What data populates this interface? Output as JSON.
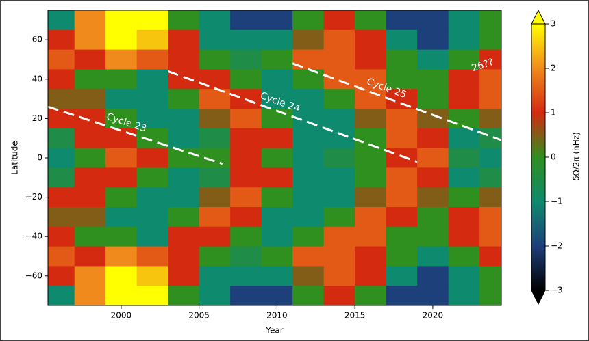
{
  "chart_data": {
    "type": "heatmap",
    "xlabel": "Year",
    "ylabel": "Latitude",
    "x": [
      1996,
      1998,
      2000,
      2002,
      2004,
      2006,
      2008,
      2010,
      2012,
      2014,
      2016,
      2018,
      2020,
      2022,
      2024
    ],
    "y": [
      70,
      60,
      50,
      40,
      30,
      20,
      10,
      0,
      -10,
      -20,
      -30,
      -40,
      -50,
      -60,
      -70
    ],
    "z": [
      [
        -1,
        2,
        3,
        3,
        0,
        -1,
        -2,
        -2,
        0,
        1,
        0,
        -2,
        -2,
        -1,
        0
      ],
      [
        1,
        2,
        3,
        2.5,
        1,
        -1,
        -1,
        -1,
        0.5,
        1.5,
        1,
        -1,
        -2,
        -1,
        0
      ],
      [
        1.5,
        1,
        2,
        1.5,
        1,
        0,
        -0.5,
        0,
        1.5,
        1.5,
        1,
        0,
        -1,
        0,
        1
      ],
      [
        1,
        0,
        0,
        -1,
        1,
        1,
        0,
        -1,
        0,
        1.5,
        1.5,
        0,
        0,
        1,
        1.5
      ],
      [
        0.5,
        0.5,
        -1,
        -1,
        0,
        1.5,
        1,
        -1,
        -1,
        0,
        1.5,
        1,
        0,
        1,
        1.5
      ],
      [
        1,
        1,
        0,
        -1,
        -1,
        0.5,
        1.5,
        0,
        -1,
        -1,
        0.5,
        1.5,
        0.5,
        0,
        0.5
      ],
      [
        -0.5,
        1,
        1,
        0,
        -1,
        -0.5,
        1,
        1,
        -1,
        -1,
        0,
        1.5,
        1,
        -1,
        -0.5
      ],
      [
        -1,
        0,
        1.5,
        1,
        0,
        0,
        1,
        0,
        -1,
        -0.5,
        0,
        1,
        1.5,
        -0.5,
        -1
      ],
      [
        -0.5,
        1,
        1,
        0,
        -1,
        -0.5,
        1,
        1,
        -1,
        -1,
        0,
        1.5,
        1,
        -1,
        -0.5
      ],
      [
        1,
        1,
        0,
        -1,
        -1,
        0.5,
        1.5,
        0,
        -1,
        -1,
        0.5,
        1.5,
        0.5,
        0,
        0.5
      ],
      [
        0.5,
        0.5,
        -1,
        -1,
        0,
        1.5,
        1,
        -1,
        -1,
        0,
        1.5,
        1,
        0,
        1,
        1.5
      ],
      [
        1,
        0,
        0,
        -1,
        1,
        1,
        0,
        -1,
        0,
        1.5,
        1.5,
        0,
        0,
        1,
        1.5
      ],
      [
        1.5,
        1,
        2,
        1.5,
        1,
        0,
        -0.5,
        0,
        1.5,
        1.5,
        1,
        0,
        -1,
        0,
        1
      ],
      [
        1,
        2,
        3,
        2.5,
        1,
        -1,
        -1,
        -1,
        0.5,
        1.5,
        1,
        -1,
        -2,
        -1,
        0
      ],
      [
        -1,
        2,
        3,
        3,
        0,
        -1,
        -2,
        -2,
        0,
        1,
        0,
        -2,
        -2,
        -1,
        0
      ]
    ],
    "xlim": [
      1995.3,
      2024.4
    ],
    "ylim": [
      -75,
      75
    ],
    "xticks": [
      2000,
      2005,
      2010,
      2015,
      2020
    ],
    "yticks": [
      {
        "value": -60,
        "label": "−60"
      },
      {
        "value": -40,
        "label": "−40"
      },
      {
        "value": -20,
        "label": "−20"
      },
      0,
      20,
      40,
      60
    ],
    "colorscale": [
      "#000000",
      "#1d3f7a",
      "#0e8a6e",
      "#2f8f1f",
      "#d42a10",
      "#f08a1c",
      "#ffff00"
    ],
    "clim": [
      -3,
      3
    ],
    "colorbar_label": "δΩ/2π (nHz)",
    "colorbar_ticks": [
      {
        "value": -3,
        "label": "−3"
      },
      {
        "value": -2,
        "label": "−2"
      },
      {
        "value": -1,
        "label": "−1"
      },
      0,
      1,
      2,
      3
    ],
    "annotations": [
      {
        "text": "Cycle 23",
        "x": [
          1995.3,
          2006.5
        ],
        "y": [
          26,
          -3
        ]
      },
      {
        "text": "Cycle 24",
        "x": [
          2003,
          2019
        ],
        "y": [
          44,
          -2
        ]
      },
      {
        "text": "Cycle 25",
        "x": [
          2011,
          2024.4
        ],
        "y": [
          48,
          9
        ]
      },
      {
        "text": "26??",
        "x": [
          2023.2
        ],
        "y": [
          47
        ]
      }
    ]
  }
}
